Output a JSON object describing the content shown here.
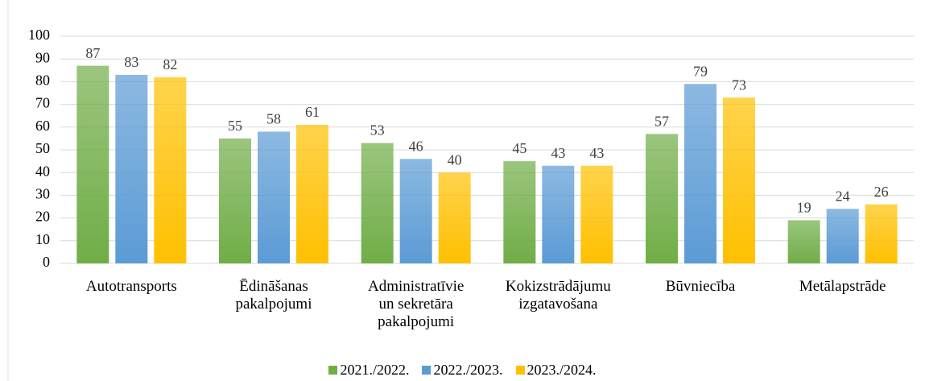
{
  "chart_data": {
    "type": "bar",
    "categories": [
      "Autotransports",
      "Ēdināšanas\npakalpojumi",
      "Administratīvie\nun sekretāra\npakalpojumi",
      "Kokizstrādājumu\nizgatavošana",
      "Būvniecība",
      "Metālapstrāde"
    ],
    "series": [
      {
        "name": "2021./2022.",
        "color": "#70ad47",
        "values": [
          87,
          55,
          53,
          45,
          57,
          19
        ]
      },
      {
        "name": "2022./2023.",
        "color": "#5b9bd5",
        "values": [
          83,
          58,
          46,
          43,
          79,
          24
        ]
      },
      {
        "name": "2023./2024.",
        "color": "#ffc000",
        "values": [
          82,
          61,
          40,
          43,
          73,
          26
        ]
      }
    ],
    "ylim": [
      0,
      100
    ],
    "yticks": [
      0,
      10,
      20,
      30,
      40,
      50,
      60,
      70,
      80,
      90,
      100
    ],
    "grid": true,
    "legend": "bottom"
  }
}
